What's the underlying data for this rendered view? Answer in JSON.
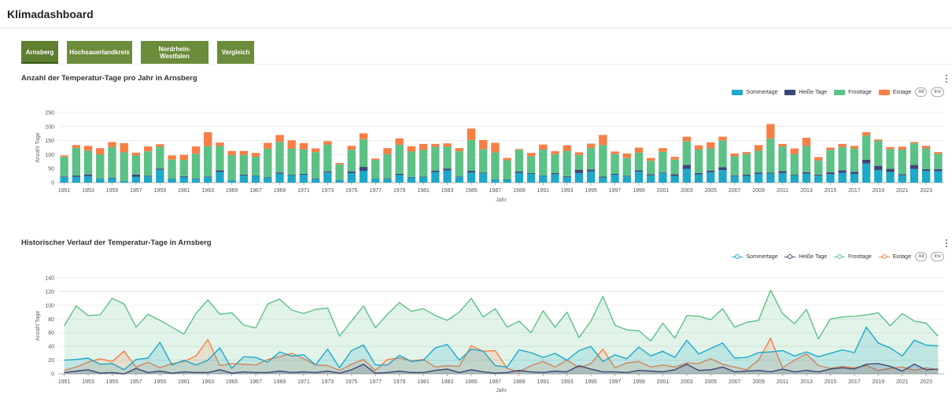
{
  "app": {
    "title": "Klimadashboard"
  },
  "tabs": [
    {
      "label": "Arnsberg",
      "active": true
    },
    {
      "label": "Hochsauerlandkreis",
      "active": false
    },
    {
      "label": "Nordrhein-Westfalen",
      "active": false
    },
    {
      "label": "Vergleich",
      "active": false
    }
  ],
  "legend_buttons": {
    "all": "All",
    "inv": "Inv"
  },
  "colors": {
    "sommertage": "#1ea8c9",
    "heisse_tage": "#3d4676",
    "frosttage": "#5cc187",
    "eistage": "#f77e45",
    "tab": "#6b8c3a"
  },
  "chart_data": [
    {
      "type": "bar",
      "stacked": true,
      "title": "Anzahl der Temperatur-Tage pro Jahr in Arnsberg",
      "xlabel": "Jahr",
      "ylabel": "Anzahl Tage",
      "ylim": [
        0,
        250
      ],
      "yticks": [
        0,
        50,
        100,
        150,
        200,
        250
      ],
      "grid": true,
      "legend": "top-right",
      "x": [
        1951,
        1952,
        1953,
        1954,
        1955,
        1956,
        1957,
        1958,
        1959,
        1960,
        1961,
        1962,
        1963,
        1964,
        1965,
        1966,
        1967,
        1968,
        1969,
        1970,
        1971,
        1972,
        1973,
        1974,
        1975,
        1976,
        1977,
        1978,
        1979,
        1980,
        1981,
        1982,
        1983,
        1984,
        1985,
        1986,
        1987,
        1988,
        1989,
        1990,
        1991,
        1992,
        1993,
        1994,
        1995,
        1996,
        1997,
        1998,
        1999,
        2000,
        2001,
        2002,
        2003,
        2004,
        2005,
        2006,
        2007,
        2008,
        2009,
        2010,
        2011,
        2012,
        2013,
        2014,
        2015,
        2016,
        2017,
        2018,
        2019,
        2020,
        2021,
        2022,
        2023,
        2024
      ],
      "xtick_labels": [
        "1951",
        "1953",
        "1955",
        "1957",
        "1959",
        "1961",
        "1963",
        "1965",
        "1967",
        "1969",
        "1971",
        "1973",
        "1975",
        "1977",
        "1979",
        "1981",
        "1983",
        "1985",
        "1987",
        "1989",
        "1991",
        "1993",
        "1995",
        "1997",
        "1999",
        "2001",
        "2003",
        "2005",
        "2007",
        "2009",
        "2011",
        "2013",
        "2015",
        "2017",
        "2019",
        "2021",
        "2023"
      ],
      "series": [
        {
          "name": "Sommertage",
          "values": [
            20,
            21,
            23,
            14,
            15,
            6,
            21,
            23,
            46,
            13,
            20,
            13,
            20,
            38,
            8,
            25,
            24,
            17,
            32,
            26,
            28,
            13,
            36,
            9,
            34,
            42,
            13,
            13,
            27,
            18,
            20,
            38,
            43,
            20,
            36,
            33,
            12,
            10,
            35,
            31,
            24,
            30,
            20,
            34,
            40,
            18,
            28,
            22,
            39,
            26,
            33,
            24,
            49,
            29,
            37,
            45,
            23,
            24,
            31,
            32,
            34,
            26,
            32,
            25,
            30,
            35,
            31,
            68,
            45,
            38,
            26,
            49,
            42,
            41
          ]
        },
        {
          "name": "Heiße Tage",
          "values": [
            2,
            4,
            6,
            1,
            2,
            0,
            8,
            2,
            4,
            1,
            3,
            2,
            2,
            6,
            1,
            3,
            2,
            2,
            4,
            2,
            3,
            2,
            4,
            1,
            6,
            14,
            1,
            2,
            4,
            2,
            2,
            5,
            7,
            2,
            6,
            3,
            1,
            2,
            5,
            3,
            2,
            4,
            3,
            12,
            7,
            3,
            3,
            2,
            5,
            4,
            3,
            6,
            14,
            5,
            6,
            10,
            3,
            4,
            5,
            3,
            7,
            3,
            5,
            3,
            7,
            9,
            7,
            14,
            15,
            11,
            4,
            14,
            6,
            7
          ]
        },
        {
          "name": "Frosttage",
          "values": [
            70,
            99,
            85,
            86,
            110,
            102,
            68,
            87,
            78,
            68,
            58,
            88,
            108,
            87,
            89,
            71,
            67,
            102,
            109,
            93,
            88,
            94,
            96,
            55,
            77,
            99,
            67,
            87,
            104,
            91,
            95,
            85,
            78,
            90,
            110,
            83,
            95,
            68,
            77,
            60,
            92,
            68,
            90,
            53,
            77,
            113,
            71,
            64,
            63,
            48,
            74,
            52,
            85,
            84,
            79,
            95,
            68,
            75,
            78,
            122,
            88,
            73,
            94,
            51,
            80,
            83,
            84,
            86,
            89,
            70,
            88,
            77,
            74,
            55
          ]
        },
        {
          "name": "Eistage",
          "values": [
            5,
            10,
            17,
            22,
            18,
            33,
            10,
            17,
            9,
            15,
            18,
            26,
            50,
            12,
            15,
            14,
            13,
            21,
            25,
            30,
            22,
            13,
            12,
            5,
            14,
            21,
            5,
            21,
            23,
            19,
            21,
            10,
            12,
            11,
            41,
            33,
            34,
            8,
            3,
            12,
            18,
            10,
            20,
            9,
            15,
            36,
            9,
            16,
            18,
            10,
            13,
            10,
            16,
            15,
            22,
            14,
            10,
            6,
            20,
            52,
            9,
            20,
            29,
            12,
            8,
            11,
            9,
            12,
            5,
            8,
            10,
            5,
            9,
            6
          ]
        }
      ]
    },
    {
      "type": "area",
      "title": "Historischer Verlauf der Temperatur-Tage in Arnsberg",
      "xlabel": "Jahr",
      "ylabel": "Anzahl Tage",
      "ylim": [
        0,
        140
      ],
      "yticks": [
        0,
        20,
        40,
        60,
        80,
        100,
        120,
        140
      ],
      "grid": true,
      "legend": "top-right",
      "series_ref": "same data as stacked bar chart"
    }
  ]
}
